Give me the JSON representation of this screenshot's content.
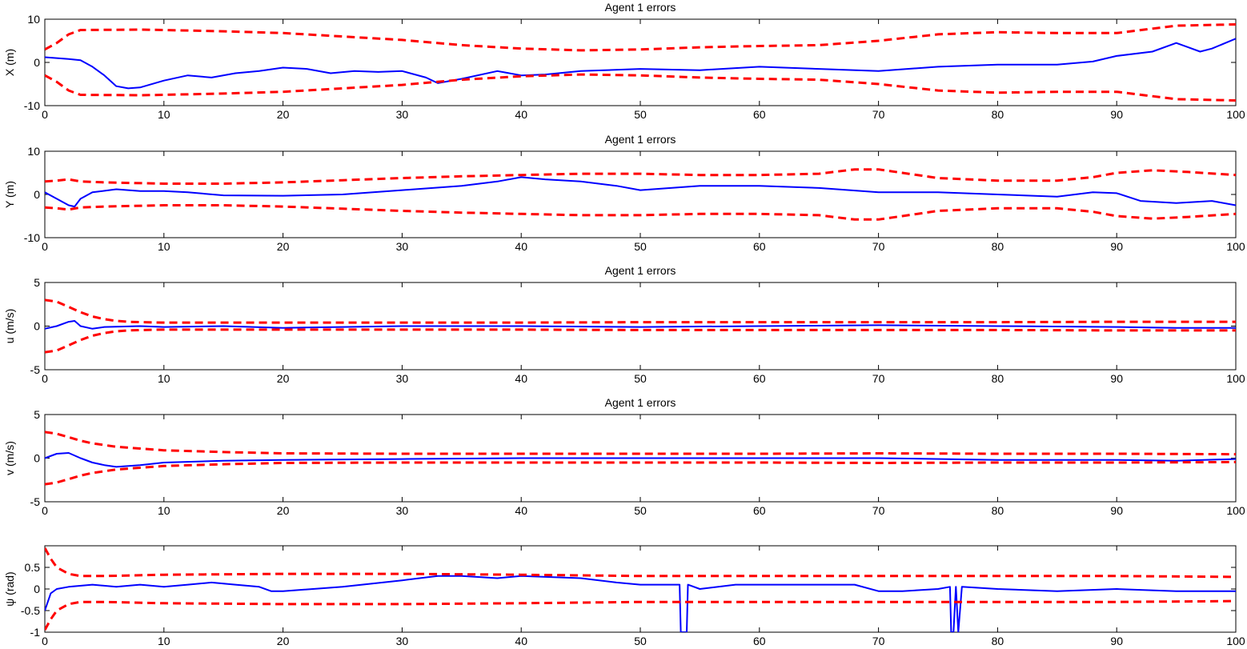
{
  "chart_data": [
    {
      "type": "line",
      "title": "Agent 1 errors",
      "ylabel": "X (m)",
      "xlim": [
        0,
        100
      ],
      "ylim": [
        -10,
        10
      ],
      "xticks": [
        0,
        10,
        20,
        30,
        40,
        50,
        60,
        70,
        80,
        90,
        100
      ],
      "yticks": [
        -10,
        0,
        10
      ],
      "ytick_labels": [
        "-10",
        "0",
        "10"
      ],
      "grid": false,
      "series": [
        {
          "role": "error",
          "color": "#0000ff",
          "x": [
            0,
            1,
            2,
            3,
            4,
            5,
            6,
            7,
            8,
            10,
            12,
            14,
            16,
            18,
            20,
            22,
            24,
            26,
            28,
            30,
            32,
            33,
            35,
            38,
            40,
            42,
            45,
            50,
            55,
            60,
            65,
            70,
            75,
            80,
            85,
            88,
            90,
            93,
            95,
            96,
            97,
            98,
            100
          ],
          "y": [
            1.2,
            1.0,
            0.8,
            0.5,
            -1.0,
            -3.0,
            -5.5,
            -6.0,
            -5.8,
            -4.2,
            -3.0,
            -3.5,
            -2.5,
            -2.0,
            -1.2,
            -1.5,
            -2.5,
            -2.0,
            -2.2,
            -2.0,
            -3.5,
            -4.8,
            -3.8,
            -2.0,
            -3.0,
            -2.8,
            -2.0,
            -1.5,
            -1.8,
            -1.0,
            -1.5,
            -2.0,
            -1.0,
            -0.5,
            -0.5,
            0.2,
            1.5,
            2.5,
            4.5,
            3.5,
            2.5,
            3.2,
            5.5
          ]
        },
        {
          "role": "upper-bound",
          "color": "#ff0000",
          "x": [
            0,
            1,
            2,
            3,
            8,
            10,
            15,
            20,
            25,
            30,
            35,
            40,
            45,
            50,
            55,
            60,
            65,
            70,
            75,
            80,
            85,
            90,
            95,
            100
          ],
          "y": [
            3.0,
            4.5,
            6.5,
            7.5,
            7.6,
            7.5,
            7.2,
            6.8,
            6.0,
            5.2,
            4.0,
            3.2,
            2.8,
            3.0,
            3.5,
            3.8,
            4.0,
            5.0,
            6.5,
            7.0,
            6.8,
            6.8,
            8.5,
            8.8
          ]
        },
        {
          "role": "lower-bound",
          "color": "#ff0000",
          "x": [
            0,
            1,
            2,
            3,
            8,
            10,
            15,
            20,
            25,
            30,
            35,
            40,
            45,
            50,
            55,
            60,
            65,
            70,
            75,
            80,
            85,
            90,
            95,
            100
          ],
          "y": [
            -3.0,
            -4.5,
            -6.5,
            -7.5,
            -7.6,
            -7.5,
            -7.2,
            -6.8,
            -6.0,
            -5.2,
            -4.0,
            -3.2,
            -2.8,
            -3.0,
            -3.5,
            -3.8,
            -4.0,
            -5.0,
            -6.5,
            -7.0,
            -6.8,
            -6.8,
            -8.5,
            -8.8
          ]
        }
      ]
    },
    {
      "type": "line",
      "title": "Agent 1 errors",
      "ylabel": "Y (m)",
      "xlim": [
        0,
        100
      ],
      "ylim": [
        -10,
        10
      ],
      "xticks": [
        0,
        10,
        20,
        30,
        40,
        50,
        60,
        70,
        80,
        90,
        100
      ],
      "yticks": [
        -10,
        0,
        10
      ],
      "ytick_labels": [
        "-10",
        "0",
        "10"
      ],
      "grid": false,
      "series": [
        {
          "role": "error",
          "color": "#0000ff",
          "x": [
            0,
            1,
            2,
            2.5,
            3,
            4,
            6,
            8,
            10,
            12,
            15,
            20,
            25,
            30,
            35,
            38,
            40,
            42,
            45,
            48,
            50,
            55,
            60,
            65,
            70,
            75,
            80,
            85,
            88,
            90,
            92,
            95,
            98,
            100
          ],
          "y": [
            0.5,
            -1.0,
            -2.5,
            -2.8,
            -1.0,
            0.5,
            1.2,
            0.8,
            0.8,
            0.5,
            -0.2,
            -0.3,
            0.0,
            1.0,
            2.0,
            3.0,
            4.0,
            3.5,
            3.0,
            2.0,
            1.0,
            2.0,
            2.0,
            1.5,
            0.5,
            0.5,
            0.0,
            -0.5,
            0.5,
            0.3,
            -1.5,
            -2.0,
            -1.5,
            -2.5
          ]
        },
        {
          "role": "upper-bound",
          "color": "#ff0000",
          "x": [
            0,
            1,
            2,
            3,
            5,
            10,
            15,
            20,
            25,
            30,
            35,
            40,
            45,
            50,
            55,
            60,
            65,
            68,
            70,
            72,
            75,
            80,
            85,
            88,
            90,
            93,
            96,
            100
          ],
          "y": [
            3.0,
            3.2,
            3.5,
            3.0,
            2.8,
            2.5,
            2.5,
            2.8,
            3.3,
            3.8,
            4.2,
            4.5,
            4.8,
            4.8,
            4.5,
            4.5,
            4.8,
            5.8,
            5.8,
            5.0,
            3.8,
            3.2,
            3.2,
            4.0,
            5.0,
            5.6,
            5.2,
            4.5
          ]
        },
        {
          "role": "lower-bound",
          "color": "#ff0000",
          "x": [
            0,
            1,
            2,
            3,
            5,
            10,
            15,
            20,
            25,
            30,
            35,
            40,
            45,
            50,
            55,
            60,
            65,
            68,
            70,
            72,
            75,
            80,
            85,
            88,
            90,
            93,
            96,
            100
          ],
          "y": [
            -3.0,
            -3.2,
            -3.5,
            -3.0,
            -2.8,
            -2.5,
            -2.5,
            -2.8,
            -3.3,
            -3.8,
            -4.2,
            -4.5,
            -4.8,
            -4.8,
            -4.5,
            -4.5,
            -4.8,
            -5.8,
            -5.8,
            -5.0,
            -3.8,
            -3.2,
            -3.2,
            -4.0,
            -5.0,
            -5.6,
            -5.2,
            -4.5
          ]
        }
      ]
    },
    {
      "type": "line",
      "title": "Agent 1 errors",
      "ylabel": "u (m/s)",
      "xlim": [
        0,
        100
      ],
      "ylim": [
        -5,
        5
      ],
      "xticks": [
        0,
        10,
        20,
        30,
        40,
        50,
        60,
        70,
        80,
        90,
        100
      ],
      "yticks": [
        -5,
        0,
        5
      ],
      "ytick_labels": [
        "-5",
        "0",
        "5"
      ],
      "grid": false,
      "series": [
        {
          "role": "error",
          "color": "#0000ff",
          "x": [
            0,
            1,
            2,
            2.5,
            3,
            4,
            5,
            8,
            10,
            15,
            20,
            25,
            30,
            40,
            50,
            60,
            70,
            80,
            90,
            95,
            100
          ],
          "y": [
            -0.3,
            0.0,
            0.5,
            0.6,
            0.0,
            -0.3,
            -0.1,
            0.0,
            -0.1,
            0.0,
            -0.2,
            -0.1,
            0.0,
            0.0,
            -0.1,
            0.0,
            0.1,
            0.0,
            -0.1,
            -0.2,
            -0.2
          ]
        },
        {
          "role": "upper-bound",
          "color": "#ff0000",
          "x": [
            0,
            1,
            2,
            3,
            4,
            5,
            6,
            7,
            8,
            10,
            20,
            30,
            40,
            50,
            60,
            70,
            80,
            90,
            100
          ],
          "y": [
            3.0,
            2.8,
            2.2,
            1.6,
            1.1,
            0.8,
            0.6,
            0.5,
            0.45,
            0.4,
            0.4,
            0.4,
            0.4,
            0.45,
            0.45,
            0.45,
            0.45,
            0.5,
            0.5
          ]
        },
        {
          "role": "lower-bound",
          "color": "#ff0000",
          "x": [
            0,
            1,
            2,
            3,
            4,
            5,
            6,
            7,
            8,
            10,
            20,
            30,
            40,
            50,
            60,
            70,
            80,
            90,
            100
          ],
          "y": [
            -3.0,
            -2.8,
            -2.2,
            -1.6,
            -1.1,
            -0.8,
            -0.6,
            -0.5,
            -0.45,
            -0.4,
            -0.4,
            -0.4,
            -0.4,
            -0.45,
            -0.45,
            -0.45,
            -0.45,
            -0.5,
            -0.5
          ]
        }
      ]
    },
    {
      "type": "line",
      "title": "Agent 1 errors",
      "ylabel": "v (m/s)",
      "xlim": [
        0,
        100
      ],
      "ylim": [
        -5,
        5
      ],
      "xticks": [
        0,
        10,
        20,
        30,
        40,
        50,
        60,
        70,
        80,
        90,
        100
      ],
      "yticks": [
        -5,
        0,
        5
      ],
      "ytick_labels": [
        "-5",
        "0",
        "5"
      ],
      "grid": false,
      "series": [
        {
          "role": "error",
          "color": "#0000ff",
          "x": [
            0,
            1,
            2,
            3,
            4,
            5,
            6,
            8,
            10,
            15,
            20,
            30,
            40,
            50,
            60,
            70,
            80,
            90,
            95,
            100
          ],
          "y": [
            0.0,
            0.5,
            0.6,
            0.0,
            -0.5,
            -0.8,
            -1.0,
            -0.8,
            -0.5,
            -0.3,
            -0.2,
            -0.1,
            0.0,
            0.0,
            0.0,
            0.0,
            -0.2,
            -0.2,
            -0.3,
            -0.1
          ]
        },
        {
          "role": "upper-bound",
          "color": "#ff0000",
          "x": [
            0,
            1,
            2,
            3,
            4,
            6,
            8,
            10,
            15,
            20,
            30,
            40,
            50,
            60,
            70,
            80,
            90,
            100
          ],
          "y": [
            3.0,
            2.8,
            2.4,
            2.0,
            1.7,
            1.3,
            1.1,
            0.9,
            0.7,
            0.55,
            0.5,
            0.5,
            0.5,
            0.5,
            0.55,
            0.5,
            0.5,
            0.45
          ]
        },
        {
          "role": "lower-bound",
          "color": "#ff0000",
          "x": [
            0,
            1,
            2,
            3,
            4,
            6,
            8,
            10,
            15,
            20,
            30,
            40,
            50,
            60,
            70,
            80,
            90,
            100
          ],
          "y": [
            -3.0,
            -2.8,
            -2.4,
            -2.0,
            -1.7,
            -1.3,
            -1.1,
            -0.9,
            -0.7,
            -0.55,
            -0.5,
            -0.5,
            -0.5,
            -0.5,
            -0.55,
            -0.5,
            -0.5,
            -0.45
          ]
        }
      ]
    },
    {
      "type": "line",
      "title": "",
      "ylabel": "ψ (rad)",
      "xlim": [
        0,
        100
      ],
      "ylim": [
        -1,
        1
      ],
      "xticks": [
        0,
        10,
        20,
        30,
        40,
        50,
        60,
        70,
        80,
        90,
        100
      ],
      "yticks": [
        -1,
        -0.5,
        0,
        0.5
      ],
      "ytick_labels": [
        "-1",
        "-0.5",
        "0",
        "0.5"
      ],
      "grid": false,
      "series": [
        {
          "role": "error",
          "color": "#0000ff",
          "x": [
            0,
            0.5,
            1,
            2,
            4,
            6,
            8,
            10,
            12,
            14,
            16,
            18,
            19,
            20,
            25,
            30,
            33,
            35,
            38,
            40,
            45,
            48,
            50,
            52,
            53.3,
            53.4,
            53.6,
            53.8,
            53.9,
            54,
            55,
            58,
            60,
            65,
            68,
            70,
            72,
            75,
            76,
            76.1,
            76.3,
            76.5,
            76.7,
            77,
            80,
            85,
            90,
            95,
            100
          ],
          "y": [
            -0.5,
            -0.1,
            0.0,
            0.05,
            0.1,
            0.05,
            0.1,
            0.05,
            0.1,
            0.15,
            0.1,
            0.05,
            -0.05,
            -0.05,
            0.05,
            0.2,
            0.3,
            0.3,
            0.25,
            0.3,
            0.25,
            0.15,
            0.1,
            0.1,
            0.1,
            -1.0,
            -1.0,
            -1.0,
            -1.0,
            0.1,
            0.0,
            0.1,
            0.1,
            0.1,
            0.1,
            -0.05,
            -0.05,
            0.0,
            0.05,
            -1.0,
            -1.0,
            0.05,
            -1.0,
            0.05,
            0.0,
            -0.05,
            0.0,
            -0.05,
            -0.05
          ]
        },
        {
          "role": "upper-bound",
          "color": "#ff0000",
          "x": [
            0,
            0.5,
            1,
            2,
            3,
            5,
            10,
            20,
            30,
            40,
            50,
            60,
            70,
            80,
            90,
            100
          ],
          "y": [
            0.95,
            0.7,
            0.5,
            0.35,
            0.3,
            0.3,
            0.33,
            0.35,
            0.35,
            0.33,
            0.3,
            0.3,
            0.3,
            0.3,
            0.3,
            0.28
          ]
        },
        {
          "role": "lower-bound",
          "color": "#ff0000",
          "x": [
            0,
            0.5,
            1,
            2,
            3,
            5,
            10,
            20,
            30,
            40,
            50,
            60,
            70,
            80,
            90,
            100
          ],
          "y": [
            -0.95,
            -0.7,
            -0.5,
            -0.35,
            -0.3,
            -0.3,
            -0.33,
            -0.35,
            -0.35,
            -0.33,
            -0.3,
            -0.3,
            -0.3,
            -0.3,
            -0.3,
            -0.28
          ]
        }
      ]
    }
  ]
}
